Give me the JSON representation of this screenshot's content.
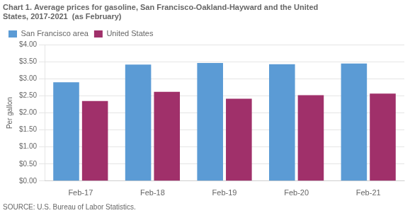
{
  "chart_data": {
    "type": "bar",
    "title": [
      "Chart 1. Average prices for gasoline, San Francisco-Oakland-Hayward and the United",
      "States, 2017-2021  (as February)"
    ],
    "ylabel": "Per gallon",
    "annotations": [
      "SOURCE: U.S. Bureau of Labor Statistics."
    ],
    "categories": [
      "Feb-17",
      "Feb-18",
      "Feb-19",
      "Feb-20",
      "Feb-21"
    ],
    "series": [
      {
        "name": "San Francisco area",
        "color": "#5B9BD5",
        "values": [
          2.9,
          3.42,
          3.47,
          3.43,
          3.45
        ]
      },
      {
        "name": "United States",
        "color": "#A0306A",
        "values": [
          2.35,
          2.62,
          2.42,
          2.52,
          2.57
        ]
      }
    ],
    "ylim": [
      0.0,
      4.0
    ],
    "yticks": [
      {
        "value": 0.0,
        "label": "$0.00"
      },
      {
        "value": 0.5,
        "label": "$0.50"
      },
      {
        "value": 1.0,
        "label": "$1.00"
      },
      {
        "value": 1.5,
        "label": "$1.50"
      },
      {
        "value": 2.0,
        "label": "$2.00"
      },
      {
        "value": 2.5,
        "label": "$2.50"
      },
      {
        "value": 3.0,
        "label": "$3.00"
      },
      {
        "value": 3.5,
        "label": "$3.50"
      },
      {
        "value": 4.0,
        "label": "$4.00"
      }
    ],
    "grid": true,
    "legend": "upper left"
  }
}
